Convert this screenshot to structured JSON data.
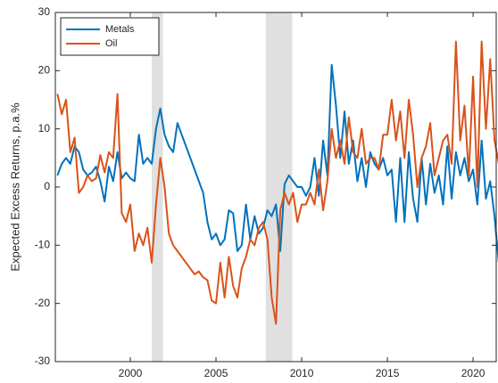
{
  "chart_data": {
    "type": "line",
    "ylabel": "Expected Excess Returns, p.a.%",
    "x": [
      1995.75,
      1996,
      1996.25,
      1996.5,
      1996.75,
      1997,
      1997.25,
      1997.5,
      1997.75,
      1998,
      1998.25,
      1998.5,
      1998.75,
      1999,
      1999.25,
      1999.5,
      1999.75,
      2000,
      2000.25,
      2000.5,
      2000.75,
      2001,
      2001.25,
      2001.5,
      2001.75,
      2002,
      2002.25,
      2002.5,
      2002.75,
      2003,
      2003.25,
      2003.5,
      2003.75,
      2004,
      2004.25,
      2004.5,
      2004.75,
      2005,
      2005.25,
      2005.5,
      2005.75,
      2006,
      2006.25,
      2006.5,
      2006.75,
      2007,
      2007.25,
      2007.5,
      2007.75,
      2008,
      2008.25,
      2008.5,
      2008.75,
      2009,
      2009.25,
      2009.5,
      2009.75,
      2010,
      2010.25,
      2010.5,
      2010.75,
      2011,
      2011.25,
      2011.5,
      2011.75,
      2012,
      2012.25,
      2012.5,
      2012.75,
      2013,
      2013.25,
      2013.5,
      2013.75,
      2014,
      2014.25,
      2014.5,
      2014.75,
      2015,
      2015.25,
      2015.5,
      2015.75,
      2016,
      2016.25,
      2016.5,
      2016.75,
      2017,
      2017.25,
      2017.5,
      2017.75,
      2018,
      2018.25,
      2018.5,
      2018.75,
      2019,
      2019.25,
      2019.5,
      2019.75,
      2020,
      2020.25,
      2020.5,
      2020.75,
      2021,
      2021.25,
      2021.5
    ],
    "series": [
      {
        "name": "Metals",
        "color": "#0072BD",
        "values": [
          2,
          4,
          5,
          4,
          7,
          6,
          3,
          2,
          2.5,
          3.5,
          1,
          -2.5,
          3.5,
          1,
          6,
          1.5,
          2.5,
          1.5,
          1,
          9,
          4,
          5,
          4,
          10,
          13.5,
          9,
          7,
          6,
          11,
          9,
          7,
          5,
          3,
          1,
          -1,
          -6,
          -9,
          -8,
          -10,
          -9,
          -4,
          -4.5,
          -11,
          -10,
          -3,
          -9,
          -5,
          -8,
          -7,
          -4,
          -5,
          -3,
          -11,
          0.5,
          2,
          1,
          0,
          0,
          -1.5,
          0,
          5,
          -1.5,
          8,
          2,
          21,
          14,
          5,
          13,
          4,
          8,
          1,
          5,
          0,
          6,
          4,
          3,
          5,
          2,
          3,
          -6,
          5,
          -6,
          6,
          -2,
          -6,
          5,
          -3,
          4,
          -1,
          2,
          -3,
          7,
          -2,
          6,
          2,
          5,
          1,
          3,
          -3,
          8,
          -2,
          1,
          -5,
          -13
        ]
      },
      {
        "name": "Oil",
        "color": "#D95319",
        "values": [
          16,
          12.5,
          15,
          6,
          8.5,
          -1,
          0,
          2,
          1,
          1.5,
          5.5,
          2.5,
          6,
          5,
          16,
          -4.5,
          -6,
          -3,
          -11,
          -8,
          -10,
          -7,
          -13,
          -3,
          5,
          0,
          -8,
          -10,
          -11,
          -12,
          -13,
          -14,
          -15,
          -14.5,
          -15.5,
          -16,
          -19.5,
          -20,
          -13,
          -19,
          -12,
          -17,
          -19,
          -14,
          -12,
          -9,
          -10,
          -7,
          -6,
          -9,
          -19,
          -23.5,
          -4,
          -1,
          -3,
          -1,
          -6,
          -3,
          -3,
          -1,
          -3,
          3,
          -4,
          1,
          10,
          5,
          8,
          4,
          12,
          6,
          5,
          10,
          4,
          5,
          5,
          3,
          9,
          9,
          15,
          8,
          13,
          5,
          15,
          9,
          0,
          5,
          7,
          11,
          2,
          5,
          8,
          9,
          4,
          25,
          8,
          14,
          2,
          19,
          0,
          25,
          10,
          22,
          8,
          4
        ]
      }
    ],
    "shaded_regions": [
      [
        2001.25,
        2001.9
      ],
      [
        2007.9,
        2009.45
      ]
    ],
    "shade_color": "#e0e0e0",
    "xlim": [
      1995.625,
      2021.35
    ],
    "xticks": [
      2000,
      2005,
      2010,
      2015,
      2020
    ],
    "ylim": [
      -30,
      30
    ],
    "yticks": [
      -30,
      -20,
      -10,
      0,
      10,
      20,
      30
    ],
    "legend": "upper-left"
  }
}
